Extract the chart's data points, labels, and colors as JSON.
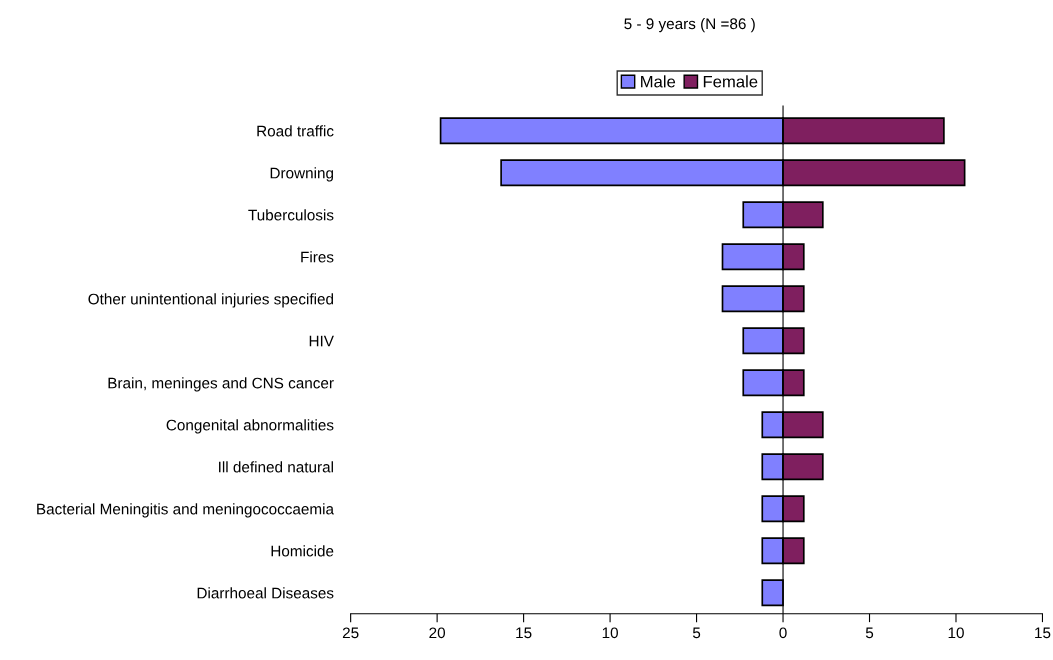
{
  "chart_data": {
    "type": "bar",
    "orientation": "horizontal",
    "stacked": true,
    "title": "5 - 9 years (N =86 )",
    "categories": [
      "Road traffic",
      "Drowning",
      "Tuberculosis",
      "Fires",
      "Other unintentional injuries specified",
      "HIV",
      "Brain, meninges and CNS cancer",
      "Congenital abnormalities",
      "Ill defined natural",
      "Bacterial Meningitis and meningococcaemia",
      "Homicide",
      "Diarrhoeal Diseases"
    ],
    "series": [
      {
        "name": "Male",
        "color": "#8080ff",
        "values": [
          -19.8,
          -16.3,
          -2.3,
          -3.5,
          -3.5,
          -2.3,
          -2.3,
          -1.2,
          -1.2,
          -1.2,
          -1.2,
          -1.2
        ]
      },
      {
        "name": "Female",
        "color": "#7f1f5f",
        "values": [
          9.3,
          10.5,
          2.3,
          1.2,
          1.2,
          1.2,
          1.2,
          2.3,
          2.3,
          1.2,
          1.2,
          null
        ]
      }
    ],
    "xlim": [
      -25,
      15
    ],
    "xticks": [
      {
        "value": -25,
        "label": "25"
      },
      {
        "value": -20,
        "label": "20"
      },
      {
        "value": -15,
        "label": "15"
      },
      {
        "value": -10,
        "label": "10"
      },
      {
        "value": -5,
        "label": "5"
      },
      0,
      5,
      10,
      15
    ],
    "ref_lines": [
      {
        "axis": "x",
        "value": 0,
        "color": "#000000"
      }
    ],
    "legend": "top",
    "grid": false
  }
}
